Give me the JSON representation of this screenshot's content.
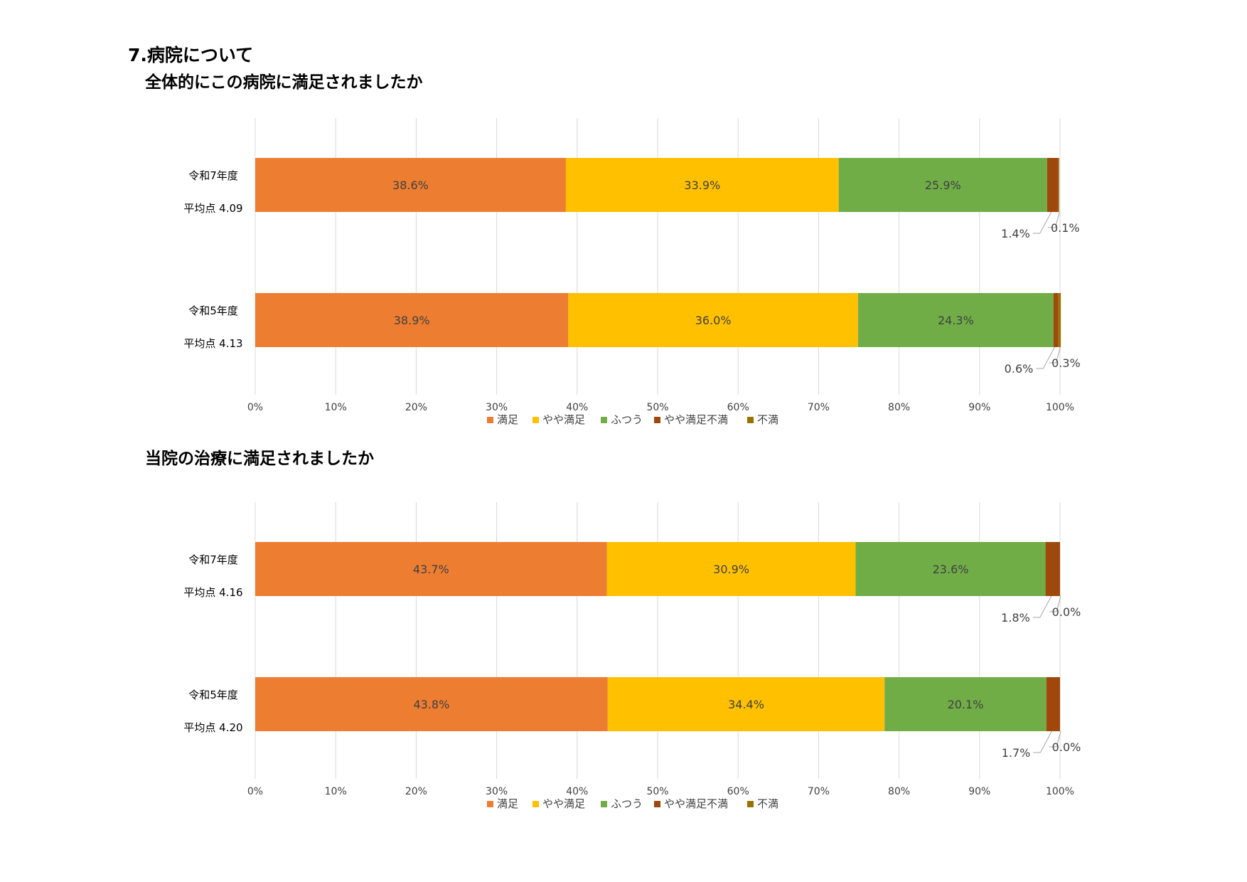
{
  "page": {
    "section_title": "7.病院について"
  },
  "colors": {
    "満足": "#ED7D31",
    "やや満足": "#FFC000",
    "ふつう": "#70AD47",
    "やや満足不満": "#9E480E",
    "不満": "#997300"
  },
  "chart_data": [
    {
      "type": "bar",
      "orientation": "horizontal",
      "stacked": "percent",
      "title": "全体的にこの病院に満足されましたか",
      "categories": [
        "令和7年度",
        "令和5年度"
      ],
      "category_notes": [
        "平均点 4.09",
        "平均点 4.13"
      ],
      "series": [
        {
          "name": "満足",
          "values": [
            38.6,
            38.9
          ]
        },
        {
          "name": "やや満足",
          "values": [
            33.9,
            36.0
          ]
        },
        {
          "name": "ふつう",
          "values": [
            25.9,
            24.3
          ]
        },
        {
          "name": "やや満足不満",
          "values": [
            1.4,
            0.6
          ]
        },
        {
          "name": "不満",
          "values": [
            0.1,
            0.3
          ]
        }
      ],
      "data_labels": [
        [
          "38.6%",
          "33.9%",
          "25.9%",
          "1.4%",
          "0.1%"
        ],
        [
          "38.9%",
          "36.0%",
          "24.3%",
          "0.6%",
          "0.3%"
        ]
      ],
      "xlim": [
        0,
        100
      ],
      "xticks": [
        "0%",
        "10%",
        "20%",
        "30%",
        "40%",
        "50%",
        "60%",
        "70%",
        "80%",
        "90%",
        "100%"
      ],
      "grid": true,
      "legend": "bottom"
    },
    {
      "type": "bar",
      "orientation": "horizontal",
      "stacked": "percent",
      "title": "当院の治療に満足されましたか",
      "categories": [
        "令和7年度",
        "令和5年度"
      ],
      "category_notes": [
        "平均点 4.16",
        "平均点 4.20"
      ],
      "series": [
        {
          "name": "満足",
          "values": [
            43.7,
            43.8
          ]
        },
        {
          "name": "やや満足",
          "values": [
            30.9,
            34.4
          ]
        },
        {
          "name": "ふつう",
          "values": [
            23.6,
            20.1
          ]
        },
        {
          "name": "やや満足不満",
          "values": [
            1.8,
            1.7
          ]
        },
        {
          "name": "不満",
          "values": [
            0.0,
            0.0
          ]
        }
      ],
      "data_labels": [
        [
          "43.7%",
          "30.9%",
          "23.6%",
          "1.8%",
          "0.0%"
        ],
        [
          "43.8%",
          "34.4%",
          "20.1%",
          "1.7%",
          "0.0%"
        ]
      ],
      "xlim": [
        0,
        100
      ],
      "xticks": [
        "0%",
        "10%",
        "20%",
        "30%",
        "40%",
        "50%",
        "60%",
        "70%",
        "80%",
        "90%",
        "100%"
      ],
      "grid": true,
      "legend": "bottom"
    }
  ]
}
